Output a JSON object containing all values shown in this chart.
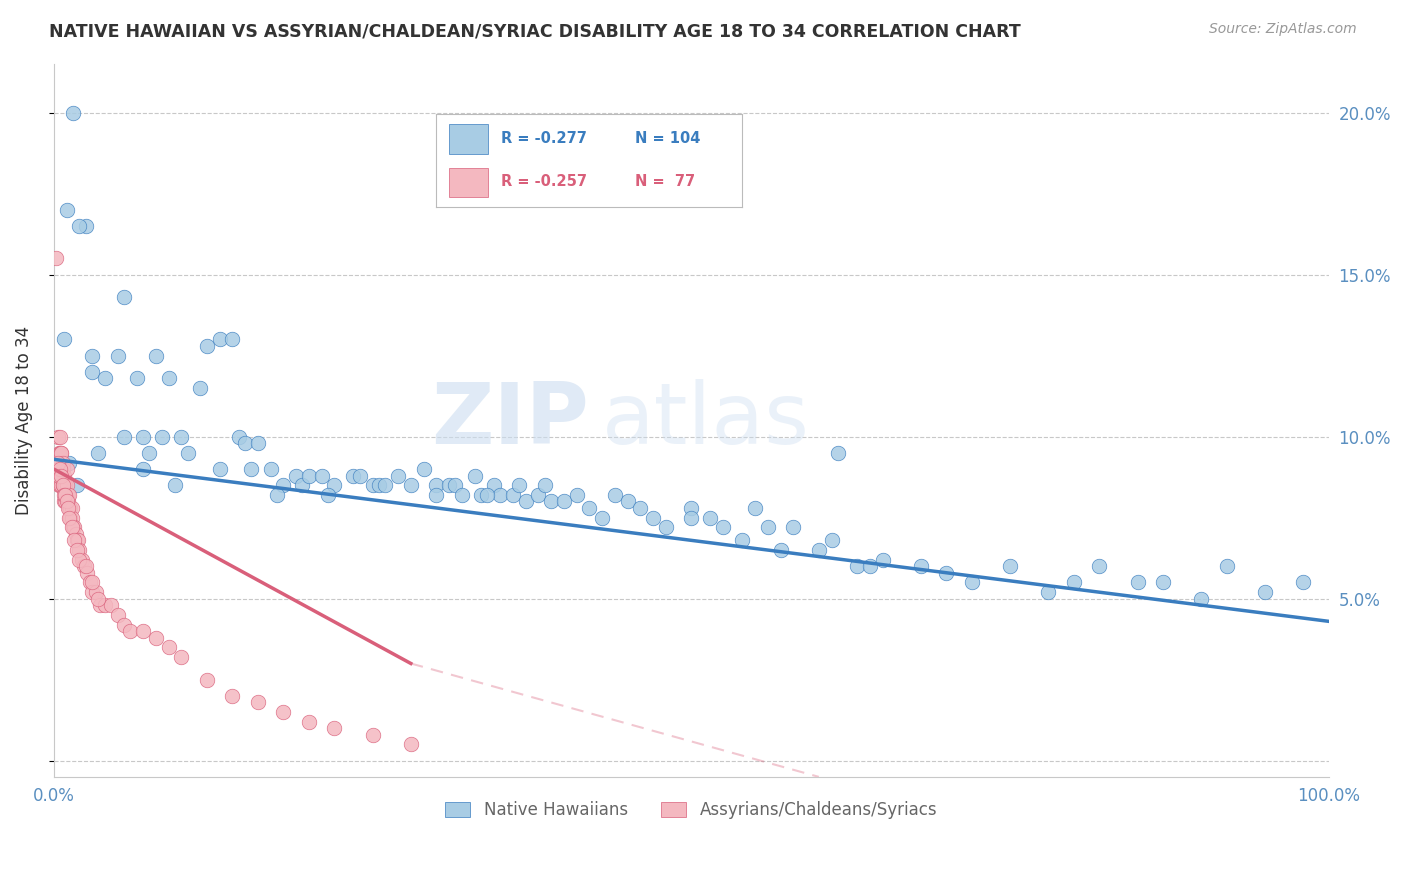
{
  "title": "NATIVE HAWAIIAN VS ASSYRIAN/CHALDEAN/SYRIAC DISABILITY AGE 18 TO 34 CORRELATION CHART",
  "source": "Source: ZipAtlas.com",
  "ylabel": "Disability Age 18 to 34",
  "xlim": [
    0.0,
    1.0
  ],
  "ylim": [
    -0.005,
    0.215
  ],
  "blue_color": "#a8cce4",
  "blue_line_color": "#3a7dbf",
  "pink_color": "#f4b8c0",
  "pink_line_color": "#d95f7a",
  "blue_label": "Native Hawaiians",
  "pink_label": "Assyrians/Chaldeans/Syriacs",
  "watermark_zip": "ZIP",
  "watermark_atlas": "atlas",
  "background_color": "#ffffff",
  "grid_color": "#c8c8c8",
  "title_color": "#333333",
  "right_axis_color": "#5a8fc0",
  "blue_scatter_x": [
    0.015,
    0.01,
    0.025,
    0.02,
    0.008,
    0.03,
    0.03,
    0.055,
    0.04,
    0.05,
    0.065,
    0.07,
    0.08,
    0.055,
    0.09,
    0.07,
    0.085,
    0.1,
    0.12,
    0.13,
    0.105,
    0.115,
    0.14,
    0.145,
    0.15,
    0.16,
    0.155,
    0.17,
    0.18,
    0.19,
    0.195,
    0.2,
    0.21,
    0.22,
    0.235,
    0.24,
    0.25,
    0.255,
    0.27,
    0.28,
    0.29,
    0.3,
    0.31,
    0.315,
    0.32,
    0.33,
    0.335,
    0.345,
    0.35,
    0.36,
    0.365,
    0.37,
    0.38,
    0.39,
    0.4,
    0.41,
    0.42,
    0.44,
    0.45,
    0.46,
    0.47,
    0.48,
    0.5,
    0.515,
    0.525,
    0.54,
    0.55,
    0.57,
    0.58,
    0.6,
    0.61,
    0.615,
    0.63,
    0.64,
    0.65,
    0.68,
    0.7,
    0.72,
    0.75,
    0.78,
    0.8,
    0.82,
    0.85,
    0.87,
    0.9,
    0.92,
    0.95,
    0.98,
    0.005,
    0.012,
    0.018,
    0.035,
    0.075,
    0.095,
    0.13,
    0.175,
    0.215,
    0.26,
    0.3,
    0.34,
    0.385,
    0.43,
    0.5,
    0.56
  ],
  "blue_scatter_y": [
    0.2,
    0.17,
    0.165,
    0.165,
    0.13,
    0.125,
    0.12,
    0.143,
    0.118,
    0.125,
    0.118,
    0.1,
    0.125,
    0.1,
    0.118,
    0.09,
    0.1,
    0.1,
    0.128,
    0.13,
    0.095,
    0.115,
    0.13,
    0.1,
    0.098,
    0.098,
    0.09,
    0.09,
    0.085,
    0.088,
    0.085,
    0.088,
    0.088,
    0.085,
    0.088,
    0.088,
    0.085,
    0.085,
    0.088,
    0.085,
    0.09,
    0.085,
    0.085,
    0.085,
    0.082,
    0.088,
    0.082,
    0.085,
    0.082,
    0.082,
    0.085,
    0.08,
    0.082,
    0.08,
    0.08,
    0.082,
    0.078,
    0.082,
    0.08,
    0.078,
    0.075,
    0.072,
    0.078,
    0.075,
    0.072,
    0.068,
    0.078,
    0.065,
    0.072,
    0.065,
    0.068,
    0.095,
    0.06,
    0.06,
    0.062,
    0.06,
    0.058,
    0.055,
    0.06,
    0.052,
    0.055,
    0.06,
    0.055,
    0.055,
    0.05,
    0.06,
    0.052,
    0.055,
    0.088,
    0.092,
    0.085,
    0.095,
    0.095,
    0.085,
    0.09,
    0.082,
    0.082,
    0.085,
    0.082,
    0.082,
    0.085,
    0.075,
    0.075,
    0.072
  ],
  "pink_scatter_x": [
    0.002,
    0.003,
    0.003,
    0.004,
    0.004,
    0.005,
    0.005,
    0.005,
    0.006,
    0.006,
    0.006,
    0.007,
    0.007,
    0.007,
    0.008,
    0.008,
    0.008,
    0.009,
    0.009,
    0.01,
    0.01,
    0.01,
    0.011,
    0.011,
    0.012,
    0.012,
    0.013,
    0.013,
    0.014,
    0.014,
    0.015,
    0.016,
    0.017,
    0.018,
    0.019,
    0.02,
    0.022,
    0.024,
    0.026,
    0.028,
    0.03,
    0.033,
    0.036,
    0.04,
    0.045,
    0.05,
    0.055,
    0.06,
    0.07,
    0.08,
    0.09,
    0.1,
    0.12,
    0.14,
    0.16,
    0.18,
    0.2,
    0.22,
    0.25,
    0.28,
    0.003,
    0.004,
    0.005,
    0.006,
    0.007,
    0.008,
    0.009,
    0.01,
    0.011,
    0.012,
    0.014,
    0.016,
    0.018,
    0.02,
    0.025,
    0.03,
    0.035
  ],
  "pink_scatter_y": [
    0.155,
    0.1,
    0.09,
    0.095,
    0.085,
    0.1,
    0.095,
    0.085,
    0.095,
    0.095,
    0.085,
    0.092,
    0.09,
    0.085,
    0.088,
    0.085,
    0.08,
    0.085,
    0.08,
    0.09,
    0.085,
    0.082,
    0.082,
    0.08,
    0.082,
    0.078,
    0.078,
    0.075,
    0.078,
    0.075,
    0.072,
    0.072,
    0.07,
    0.068,
    0.068,
    0.065,
    0.062,
    0.06,
    0.058,
    0.055,
    0.052,
    0.052,
    0.048,
    0.048,
    0.048,
    0.045,
    0.042,
    0.04,
    0.04,
    0.038,
    0.035,
    0.032,
    0.025,
    0.02,
    0.018,
    0.015,
    0.012,
    0.01,
    0.008,
    0.005,
    0.092,
    0.088,
    0.09,
    0.088,
    0.085,
    0.082,
    0.082,
    0.08,
    0.078,
    0.075,
    0.072,
    0.068,
    0.065,
    0.062,
    0.06,
    0.055,
    0.05
  ],
  "blue_trend_x": [
    0.0,
    1.0
  ],
  "blue_trend_y": [
    0.093,
    0.043
  ],
  "pink_trend_x": [
    0.0,
    0.28
  ],
  "pink_trend_y": [
    0.09,
    0.03
  ]
}
